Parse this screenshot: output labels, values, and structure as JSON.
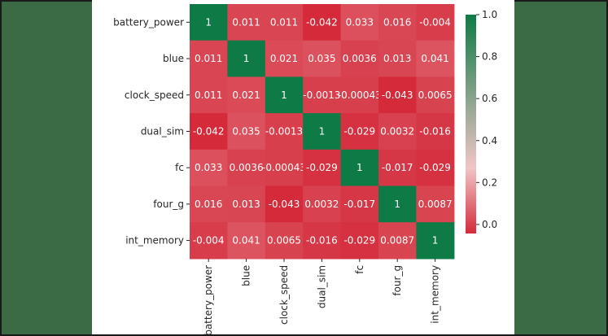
{
  "chart_data": {
    "type": "heatmap",
    "title": "",
    "variables": [
      "battery_power",
      "blue",
      "clock_speed",
      "dual_sim",
      "fc",
      "four_g",
      "int_memory"
    ],
    "matrix": [
      [
        1,
        0.011,
        0.011,
        -0.042,
        0.033,
        0.016,
        -0.004
      ],
      [
        0.011,
        1,
        0.021,
        0.035,
        0.0036,
        0.013,
        0.041
      ],
      [
        0.011,
        0.021,
        1,
        -0.0013,
        -0.00043,
        -0.043,
        0.0065
      ],
      [
        -0.042,
        0.035,
        -0.0013,
        1,
        -0.029,
        0.0032,
        -0.016
      ],
      [
        0.033,
        0.0036,
        -0.00043,
        -0.029,
        1,
        -0.017,
        -0.029
      ],
      [
        0.016,
        0.013,
        -0.043,
        0.0032,
        -0.017,
        1,
        0.0087
      ],
      [
        -0.004,
        0.041,
        0.0065,
        -0.016,
        -0.029,
        0.0087,
        1
      ]
    ],
    "labels": [
      [
        "1",
        "0.011",
        "0.011",
        "-0.042",
        "0.033",
        "0.016",
        "-0.004"
      ],
      [
        "0.011",
        "1",
        "0.021",
        "0.035",
        "0.0036",
        "0.013",
        "0.041"
      ],
      [
        "0.011",
        "0.021",
        "1",
        "-0.0013",
        "-0.00043",
        "-0.043",
        "0.0065"
      ],
      [
        "-0.042",
        "0.035",
        "-0.0013",
        "1",
        "-0.029",
        "0.0032",
        "-0.016"
      ],
      [
        "0.033",
        "0.0036",
        "-0.00043",
        "-0.029",
        "1",
        "-0.017",
        "-0.029"
      ],
      [
        "0.016",
        "0.013",
        "-0.043",
        "0.0032",
        "-0.017",
        "1",
        "0.0087"
      ],
      [
        "-0.004",
        "0.041",
        "0.0065",
        "-0.016",
        "-0.029",
        "0.0087",
        "1"
      ]
    ],
    "colormap": {
      "name": "RdYlGn-like",
      "low_color": "#d42a3a",
      "mid_color": "#f0c6c6",
      "high_color": "#0e7a45"
    },
    "colorbar": {
      "vmin": -0.043,
      "vmax": 1.0,
      "ticks": [
        0.0,
        0.2,
        0.4,
        0.6,
        0.8,
        1.0
      ],
      "tick_labels": [
        "0.0",
        "0.2",
        "0.4",
        "0.6",
        "0.8",
        "1.0"
      ]
    },
    "xlabel": "",
    "ylabel": ""
  }
}
